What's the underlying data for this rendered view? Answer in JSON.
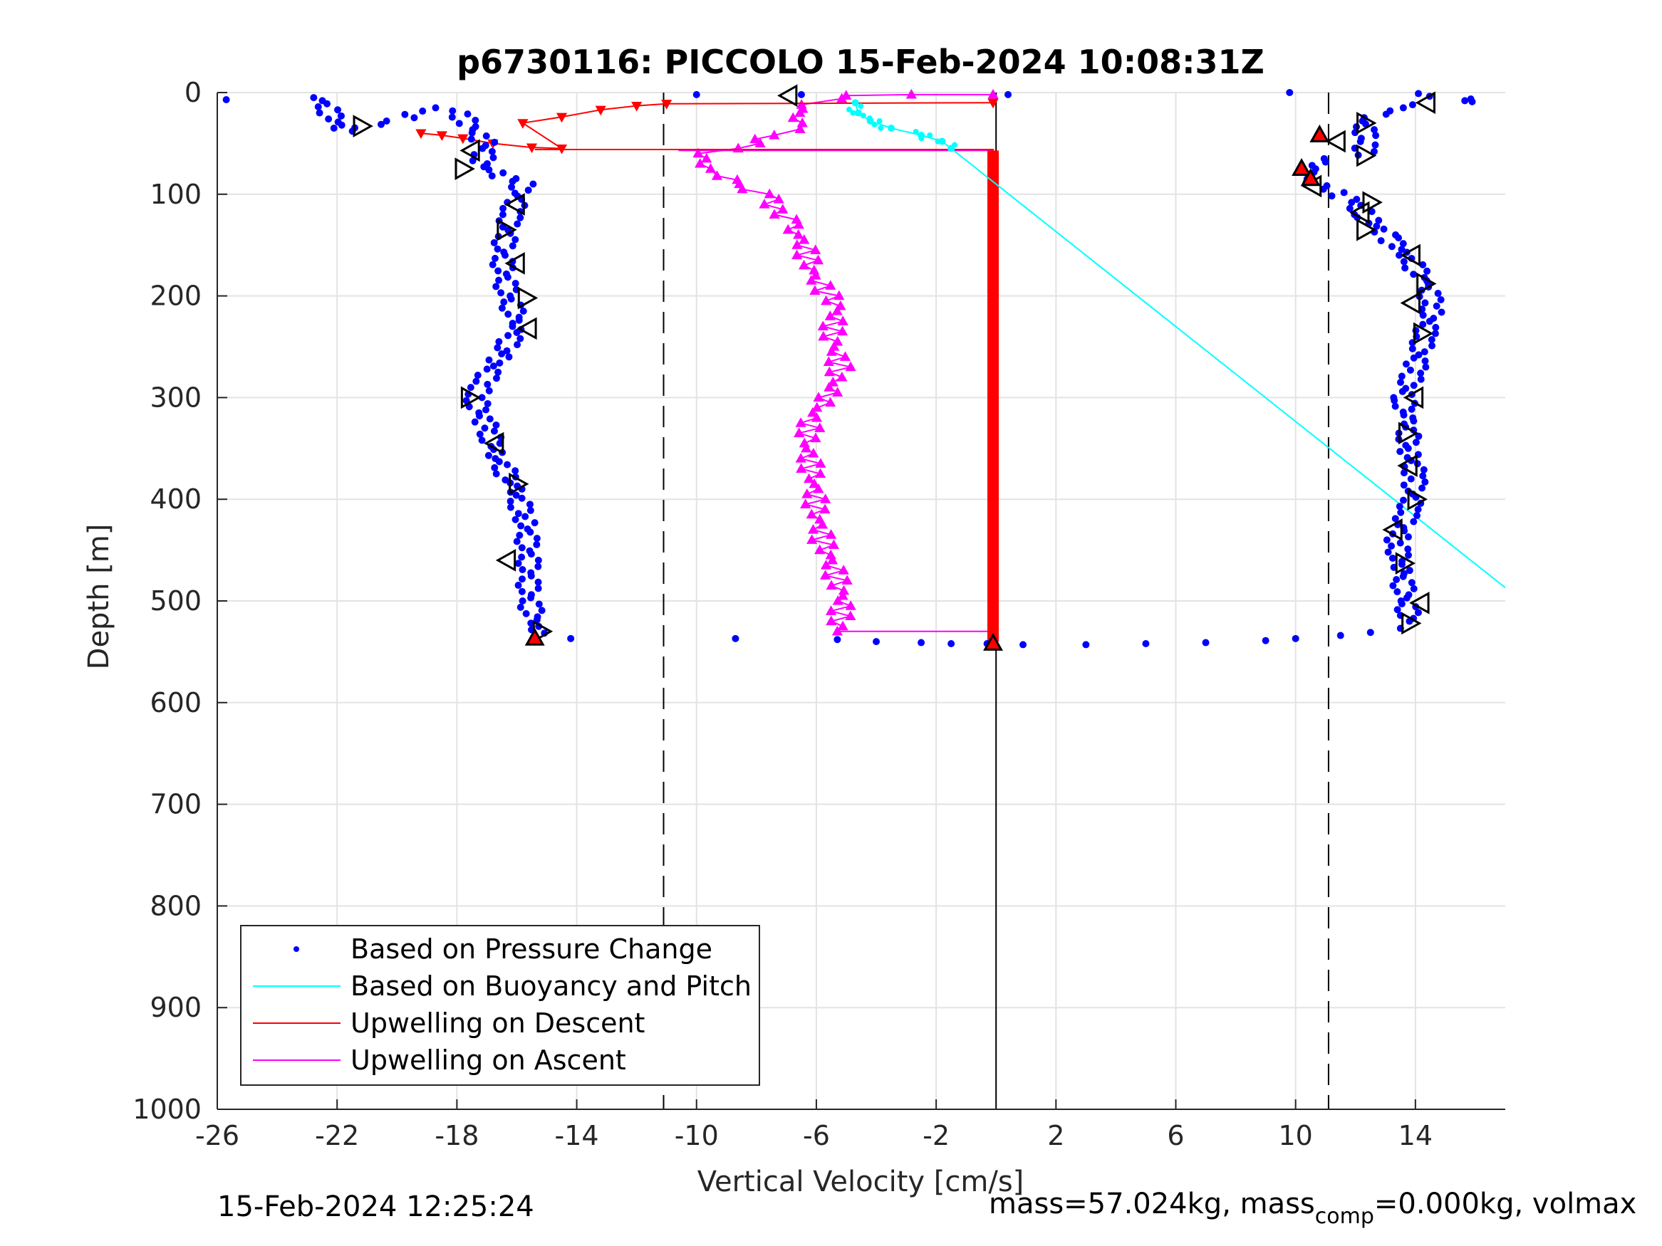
{
  "chart_data": {
    "type": "scatter",
    "title": "p6730116: PICCOLO 15-Feb-2024 10:08:31Z",
    "xlabel": "Vertical Velocity [cm/s]",
    "ylabel": "Depth [m]",
    "xlim": [
      -26,
      17
    ],
    "ylim": [
      0,
      1000
    ],
    "y_reversed": true,
    "x_ticks": [
      -26,
      -22,
      -18,
      -14,
      -10,
      -6,
      -2,
      2,
      6,
      10,
      14
    ],
    "x_tick_labels": [
      "-26",
      "-22",
      "-18",
      "-14",
      "-10",
      "-6",
      "-2",
      "2",
      "6",
      "10",
      "14"
    ],
    "y_ticks": [
      0,
      100,
      200,
      300,
      400,
      500,
      600,
      700,
      800,
      900,
      1000
    ],
    "y_tick_labels": [
      "0",
      "100",
      "200",
      "300",
      "400",
      "500",
      "600",
      "700",
      "800",
      "900",
      "1000"
    ],
    "grid": true,
    "legend_position": "bottom-left",
    "reference_lines": {
      "dashed_x": [
        -11.1,
        11.1
      ],
      "solid_x": [
        0
      ]
    },
    "series": [
      {
        "name": "Based on Pressure Change",
        "marker": "dot",
        "color": "#0000ff",
        "descent_profile": [
          [
            -25.7,
            7
          ],
          [
            -22.6,
            5
          ],
          [
            -21.8,
            38
          ],
          [
            -20,
            28
          ],
          [
            -19,
            15
          ],
          [
            -18,
            18
          ],
          [
            -17,
            52
          ],
          [
            -17.2,
            70
          ],
          [
            -16.5,
            82
          ],
          [
            -15.8,
            90
          ],
          [
            -16.2,
            120
          ],
          [
            -16.5,
            160
          ],
          [
            -16.3,
            200
          ],
          [
            -15.9,
            230
          ],
          [
            -16.6,
            260
          ],
          [
            -17.2,
            290
          ],
          [
            -17.4,
            300
          ],
          [
            -17,
            330
          ],
          [
            -16.6,
            360
          ],
          [
            -16.1,
            390
          ],
          [
            -15.7,
            420
          ],
          [
            -15.6,
            460
          ],
          [
            -15.6,
            500
          ],
          [
            -15.3,
            525
          ],
          [
            -15.4,
            535
          ]
        ],
        "bottom_turn": [
          [
            -14.2,
            537
          ],
          [
            -8.7,
            537
          ],
          [
            -5.3,
            538
          ],
          [
            -4,
            540
          ],
          [
            -2.5,
            541
          ],
          [
            -1.5,
            542
          ],
          [
            -0.3,
            542
          ],
          [
            0.9,
            543
          ],
          [
            3,
            543
          ],
          [
            5,
            542
          ],
          [
            7,
            541
          ],
          [
            9,
            539
          ],
          [
            10,
            537
          ],
          [
            11.5,
            534
          ],
          [
            12.5,
            531
          ],
          [
            13.5,
            527
          ]
        ],
        "ascent_profile": [
          [
            13.8,
            520
          ],
          [
            13.7,
            500
          ],
          [
            13.5,
            470
          ],
          [
            13.4,
            440
          ],
          [
            13.8,
            410
          ],
          [
            14,
            380
          ],
          [
            13.8,
            350
          ],
          [
            13.7,
            320
          ],
          [
            13.6,
            300
          ],
          [
            14,
            270
          ],
          [
            14.3,
            240
          ],
          [
            14.6,
            210
          ],
          [
            14.3,
            185
          ],
          [
            13.7,
            160
          ],
          [
            13,
            140
          ],
          [
            12.3,
            120
          ],
          [
            11.8,
            105
          ],
          [
            11,
            95
          ],
          [
            10.5,
            85
          ],
          [
            10.4,
            75
          ],
          [
            11.3,
            65
          ],
          [
            12.3,
            58
          ],
          [
            12.4,
            45
          ],
          [
            12.2,
            28
          ],
          [
            13,
            18
          ],
          [
            14.2,
            12
          ],
          [
            15.3,
            8
          ],
          [
            16.2,
            9
          ],
          [
            14.1,
            1
          ]
        ],
        "surface_points": [
          [
            -10,
            2
          ],
          [
            9.8,
            0
          ],
          [
            0.4,
            2
          ],
          [
            -6.5,
            2
          ]
        ]
      },
      {
        "name": "Based on Buoyancy and Pitch",
        "marker": "line",
        "color": "#00ffff",
        "near_surface": [
          [
            -4.7,
            10
          ],
          [
            -4.6,
            20
          ],
          [
            -4.2,
            28
          ],
          [
            -3.5,
            35
          ],
          [
            -2.5,
            42
          ],
          [
            -1.8,
            48
          ],
          [
            -1.5,
            55
          ]
        ],
        "line": [
          [
            -1.5,
            55
          ],
          [
            17,
            487
          ]
        ]
      },
      {
        "name": "Upwelling on Descent",
        "marker": "triangle-down",
        "color": "#ff0000",
        "values": [
          [
            -19.2,
            40
          ],
          [
            -18.5,
            42
          ],
          [
            -17.8,
            45
          ],
          [
            -16.8,
            50
          ],
          [
            -15.5,
            54
          ],
          [
            -14.5,
            55
          ],
          [
            -15.8,
            30
          ],
          [
            -14.5,
            24
          ],
          [
            -13.2,
            17
          ],
          [
            -12,
            13
          ],
          [
            -11,
            11
          ],
          [
            -0.1,
            10
          ]
        ],
        "bottom_line": [
          [
            -15.4,
            56
          ],
          [
            -0.1,
            56
          ],
          [
            -0.1,
            540
          ]
        ],
        "bottom_markers": [
          [
            -15.4,
            537
          ],
          [
            -0.1,
            540
          ]
        ]
      },
      {
        "name": "Upwelling on Ascent",
        "marker": "triangle-up",
        "color": "#ff00ff",
        "values": [
          [
            -5.3,
            530
          ],
          [
            -5.1,
            500
          ],
          [
            -5.4,
            470
          ],
          [
            -5.8,
            440
          ],
          [
            -6,
            410
          ],
          [
            -6.1,
            380
          ],
          [
            -6.3,
            350
          ],
          [
            -6.2,
            320
          ],
          [
            -5.6,
            300
          ],
          [
            -5.2,
            270
          ],
          [
            -5.5,
            240
          ],
          [
            -5.3,
            210
          ],
          [
            -6.1,
            180
          ],
          [
            -6.4,
            150
          ],
          [
            -7,
            125
          ],
          [
            -7.4,
            110
          ],
          [
            -7.8,
            100
          ],
          [
            -8.5,
            90
          ],
          [
            -9.2,
            82
          ],
          [
            -9.8,
            75
          ],
          [
            -9.6,
            60
          ],
          [
            -8.2,
            50
          ],
          [
            -7.2,
            42
          ],
          [
            -6.5,
            30
          ],
          [
            -6.7,
            20
          ],
          [
            -6.2,
            12
          ],
          [
            -5.5,
            6
          ],
          [
            -4.7,
            3
          ],
          [
            -3,
            2
          ],
          [
            -0.1,
            2
          ]
        ],
        "top_line": [
          [
            -10.6,
            57
          ],
          [
            -0.1,
            57
          ]
        ],
        "bottom_line": [
          [
            -5.3,
            530
          ],
          [
            -0.1,
            530
          ]
        ]
      }
    ],
    "descent_mode_markers": [
      [
        -21.2,
        33
      ],
      [
        -17.5,
        57
      ],
      [
        -17.8,
        75
      ],
      [
        -16,
        110
      ],
      [
        -16.4,
        135
      ],
      [
        -16,
        168
      ],
      [
        -15.7,
        202
      ],
      [
        -15.6,
        232
      ],
      [
        -17.6,
        300
      ],
      [
        -16.7,
        345
      ],
      [
        -16,
        385
      ],
      [
        -16.3,
        460
      ],
      [
        -15.2,
        530
      ]
    ],
    "ascent_mode_markers": [
      [
        13.8,
        522
      ],
      [
        14.2,
        502
      ],
      [
        13.6,
        463
      ],
      [
        13.3,
        430
      ],
      [
        14,
        400
      ],
      [
        13.8,
        367
      ],
      [
        13.7,
        335
      ],
      [
        14,
        300
      ],
      [
        14.2,
        237
      ],
      [
        13.9,
        207
      ],
      [
        14.3,
        188
      ],
      [
        13.9,
        160
      ],
      [
        12.3,
        135
      ],
      [
        12.2,
        118
      ],
      [
        12.5,
        108
      ],
      [
        10.6,
        92
      ],
      [
        12.3,
        62
      ],
      [
        11.4,
        48
      ],
      [
        12.3,
        30
      ],
      [
        14.4,
        10
      ]
    ],
    "surface_marker_top": [
      -6.9,
      3
    ],
    "apogee_markers_red": [
      [
        10.8,
        42
      ],
      [
        10.2,
        75
      ],
      [
        10.5,
        85
      ],
      [
        -0.1,
        542
      ]
    ],
    "footer_left": "15-Feb-2024 12:25:24",
    "footer_right_prefix": "mass=57.024kg, mass",
    "footer_right_sub": "comp",
    "footer_right_suffix": "=0.000kg, volmax"
  }
}
